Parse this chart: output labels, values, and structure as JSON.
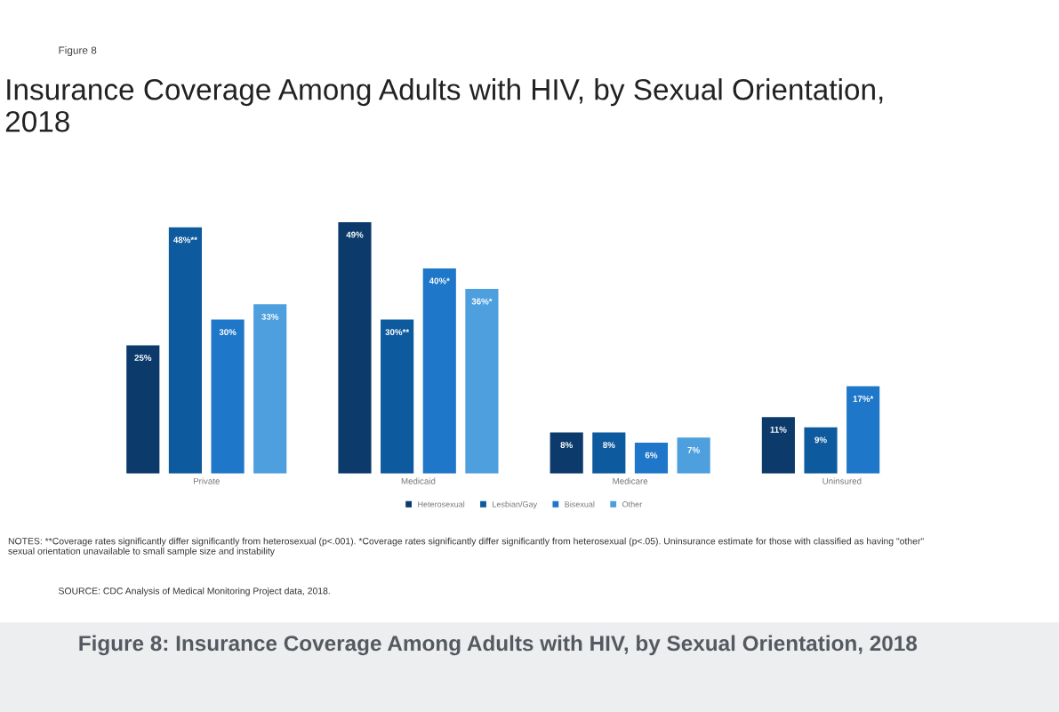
{
  "chart_data": {
    "type": "bar",
    "title": "Insurance Coverage Among Adults with HIV, by Sexual Orientation, 2018",
    "categories": [
      "Private",
      "Medicaid",
      "Medicare",
      "Uninsured"
    ],
    "series": [
      {
        "name": "Heterosexual",
        "color": "#0b3a6b",
        "values": [
          25,
          49,
          8,
          11
        ],
        "value_labels": [
          "25%",
          "49%",
          "8%",
          "11%"
        ]
      },
      {
        "name": "Lesbian/Gay",
        "color": "#0e5a9e",
        "values": [
          48,
          30,
          8,
          9
        ],
        "value_labels": [
          "48%**",
          "30%**",
          "8%",
          "9%"
        ]
      },
      {
        "name": "Bisexual",
        "color": "#1f77c9",
        "values": [
          30,
          40,
          6,
          17
        ],
        "value_labels": [
          "30%",
          "40%*",
          "6%",
          "17%*"
        ]
      },
      {
        "name": "Other",
        "color": "#4d9fde",
        "values": [
          33,
          36,
          7,
          null
        ],
        "value_labels": [
          "33%",
          "36%*",
          "7%",
          null
        ]
      }
    ],
    "legend": "bottom",
    "grid": false,
    "annotations": [
      "Figure 8",
      "NOTES: **Coverage rates significantly differ significantly from heterosexual (p<.001). *Coverage rates significantly differ significantly from heterosexual (p<.05). Uninsurance estimate for those with classified as having \"other\" sexual orientation unavailable to small sample size and instability",
      "SOURCE: CDC Analysis of Medical Monitoring Project data, 2018.",
      "Figure 8: Insurance Coverage Among Adults with HIV, by Sexual Orientation, 2018"
    ]
  }
}
